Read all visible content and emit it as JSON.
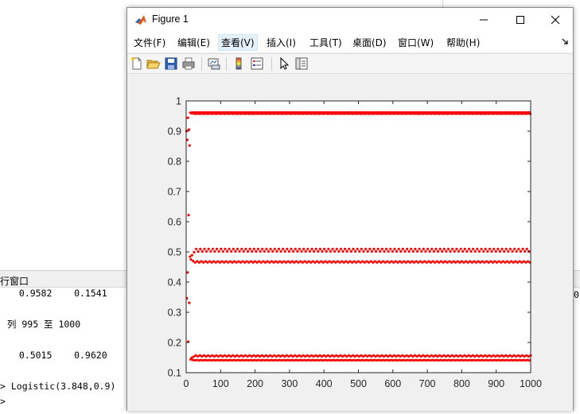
{
  "command_window": {
    "header_label": "行窗口",
    "lines": [
      "  0.9582    0.1541",
      " 列 995 至 1000",
      "  0.5015    0.9620",
      "> Logistic(3.848,0.9)",
      ">"
    ],
    "right_edge_digit": "0"
  },
  "figure_window": {
    "title": "Figure 1",
    "menu": [
      "文件(F)",
      "编辑(E)",
      "查看(V)",
      "插入(I)",
      "工具(T)",
      "桌面(D)",
      "窗口(W)",
      "帮助(H)"
    ],
    "active_menu_index": 2,
    "toolbar_icons": [
      "new-figure-icon",
      "open-file-icon",
      "save-icon",
      "print-icon",
      "link-plot-icon",
      "colorbar-icon",
      "legend-icon",
      "pointer-icon",
      "property-editor-icon"
    ]
  },
  "colors": {
    "marker": "#ff0000",
    "figure_bg": "#f0f0f0",
    "axes_bg": "#ffffff"
  },
  "chart_data": {
    "type": "scatter",
    "title": "",
    "xlabel": "",
    "ylabel": "",
    "xlim": [
      0,
      1000
    ],
    "ylim": [
      0.1,
      1
    ],
    "x_ticks": [
      0,
      100,
      200,
      300,
      400,
      500,
      600,
      700,
      800,
      900,
      1000
    ],
    "y_ticks": [
      0.1,
      0.2,
      0.3,
      0.4,
      0.5,
      0.6,
      0.7,
      0.8,
      0.9,
      1
    ],
    "x_tick_labels": [
      "0",
      "100",
      "200",
      "300",
      "400",
      "500",
      "600",
      "700",
      "800",
      "900",
      "1000"
    ],
    "y_tick_labels": [
      "0.1",
      "0.2",
      "0.3",
      "0.4",
      "0.5",
      "0.6",
      "0.7",
      "0.8",
      "0.9",
      "1"
    ],
    "grid": false,
    "marker": "dot",
    "series": [
      {
        "description_of_values": "Logistic map x(n+1) = r*x(n)*(1-x(n)), r = 3.848, x(1) = 0.9, n = 1..1000",
        "r": 3.848,
        "x0": 0.9,
        "n": 1000
      }
    ]
  }
}
